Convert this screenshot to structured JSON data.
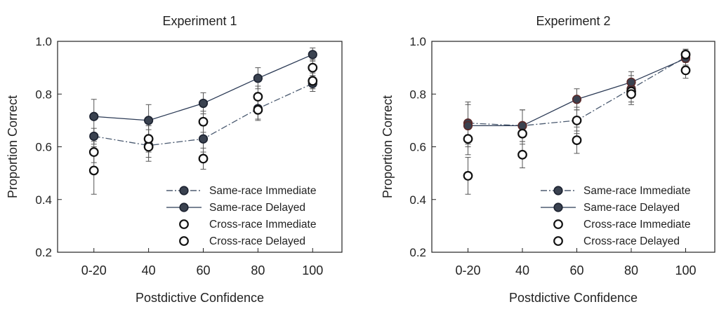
{
  "chart_data": [
    {
      "type": "line",
      "title": "Experiment 1",
      "xlabel": "Postdictive Confidence",
      "ylabel": "Proportion Correct",
      "categories": [
        "0-20",
        "40",
        "60",
        "80",
        "100"
      ],
      "ylim": [
        0.2,
        1.0
      ],
      "yticks": [
        "0.2",
        "0.4",
        "0.6",
        "0.8",
        "1.0"
      ],
      "grid": false,
      "legend_position": "bottom-right",
      "series": [
        {
          "name": "Same-race Immediate",
          "values": [
            0.64,
            0.605,
            0.63,
            0.745,
            0.84
          ],
          "err": [
            0.03,
            0.06,
            0.05,
            0.04,
            0.03
          ],
          "marker": "filled",
          "line": "dashed"
        },
        {
          "name": "Same-race Delayed",
          "values": [
            0.715,
            0.7,
            0.765,
            0.86,
            0.95
          ],
          "err": [
            0.065,
            0.06,
            0.04,
            0.04,
            0.025
          ],
          "marker": "filled",
          "line": "solid"
        },
        {
          "name": "Cross-race Immediate",
          "values": [
            0.58,
            0.63,
            0.695,
            0.79,
            0.9
          ],
          "err": [
            0.04,
            0.05,
            0.04,
            0.04,
            0.03
          ],
          "marker": "open",
          "line": "none"
        },
        {
          "name": "Cross-race Delayed",
          "values": [
            0.51,
            0.6,
            0.555,
            0.74,
            0.85
          ],
          "err": [
            0.09,
            0.04,
            0.04,
            0.04,
            0.03
          ],
          "marker": "open",
          "line": "none"
        }
      ]
    },
    {
      "type": "line",
      "title": "Experiment 2",
      "xlabel": "Postdictive Confidence",
      "ylabel": "Proportion Correct",
      "categories": [
        "0-20",
        "40",
        "60",
        "80",
        "100"
      ],
      "ylim": [
        0.2,
        1.0
      ],
      "yticks": [
        "0.2",
        "0.4",
        "0.6",
        "0.8",
        "1.0"
      ],
      "grid": false,
      "legend_position": "bottom-right",
      "series": [
        {
          "name": "Same-race Immediate",
          "values": [
            0.69,
            0.68,
            0.7,
            0.82,
            0.94
          ],
          "err": [
            0.08,
            0.06,
            0.05,
            0.05,
            0.03
          ],
          "marker": "filled",
          "line": "dashed"
        },
        {
          "name": "Same-race Delayed",
          "values": [
            0.68,
            0.68,
            0.78,
            0.845,
            0.935
          ],
          "err": [
            0.08,
            0.06,
            0.04,
            0.04,
            0.03
          ],
          "marker": "filled",
          "line": "solid"
        },
        {
          "name": "Cross-race Immediate",
          "values": [
            0.63,
            0.65,
            0.625,
            0.8,
            0.95
          ],
          "err": [
            0.06,
            0.04,
            0.05,
            0.04,
            0.02
          ],
          "marker": "open",
          "line": "none"
        },
        {
          "name": "Cross-race Delayed",
          "values": [
            0.49,
            0.57,
            0.7,
            0.81,
            0.89
          ],
          "err": [
            0.07,
            0.05,
            0.04,
            0.04,
            0.03
          ],
          "marker": "open",
          "line": "none"
        }
      ]
    }
  ]
}
